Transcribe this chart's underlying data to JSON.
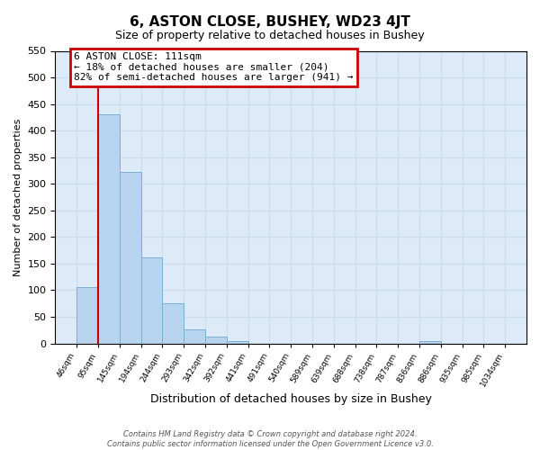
{
  "title": "6, ASTON CLOSE, BUSHEY, WD23 4JT",
  "subtitle": "Size of property relative to detached houses in Bushey",
  "xlabel": "Distribution of detached houses by size in Bushey",
  "ylabel": "Number of detached properties",
  "bar_values": [
    105,
    430,
    323,
    162,
    75,
    27,
    13,
    5,
    0,
    0,
    0,
    0,
    0,
    0,
    0,
    0,
    4,
    0,
    0,
    0
  ],
  "bar_labels": [
    "46sqm",
    "95sqm",
    "145sqm",
    "194sqm",
    "244sqm",
    "293sqm",
    "342sqm",
    "392sqm",
    "441sqm",
    "491sqm",
    "540sqm",
    "589sqm",
    "639sqm",
    "688sqm",
    "738sqm",
    "787sqm",
    "836sqm",
    "886sqm",
    "935sqm",
    "985sqm",
    "1034sqm"
  ],
  "bar_color": "#b8d4ee",
  "bar_edge_color": "#7aafd4",
  "vline_x": 1,
  "vline_color": "#cc0000",
  "ylim": [
    0,
    550
  ],
  "yticks": [
    0,
    50,
    100,
    150,
    200,
    250,
    300,
    350,
    400,
    450,
    500,
    550
  ],
  "annotation_title": "6 ASTON CLOSE: 111sqm",
  "annotation_line1": "← 18% of detached houses are smaller (204)",
  "annotation_line2": "82% of semi-detached houses are larger (941) →",
  "annotation_box_color": "#cc0000",
  "footer1": "Contains HM Land Registry data © Crown copyright and database right 2024.",
  "footer2": "Contains public sector information licensed under the Open Government Licence v3.0.",
  "grid_color": "#c8ddf0",
  "background_color": "#ddeaf8"
}
